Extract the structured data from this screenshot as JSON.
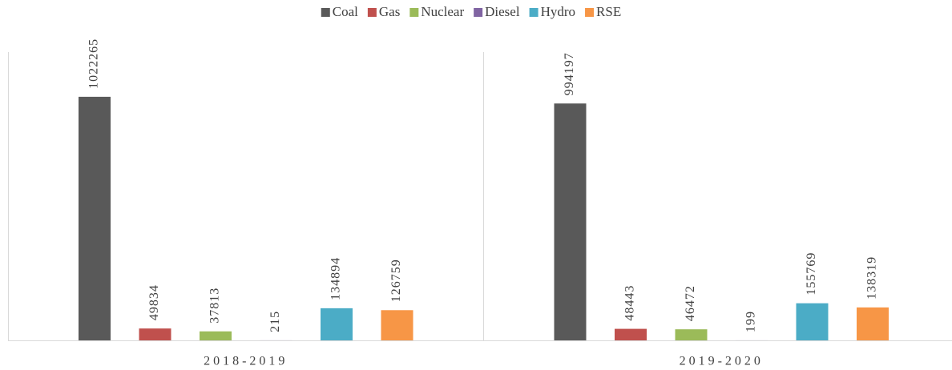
{
  "chart_data": {
    "type": "bar",
    "categories": [
      "2018-2019",
      "2019-2020"
    ],
    "series": [
      {
        "name": "Coal",
        "color": "#595959",
        "values": [
          1022265,
          994197
        ]
      },
      {
        "name": "Gas",
        "color": "#c0504d",
        "values": [
          49834,
          48443
        ]
      },
      {
        "name": "Nuclear",
        "color": "#9bbb59",
        "values": [
          37813,
          46472
        ]
      },
      {
        "name": "Diesel",
        "color": "#8064a2",
        "values": [
          215,
          199
        ]
      },
      {
        "name": "Hydro",
        "color": "#4bacc6",
        "values": [
          134894,
          155769
        ]
      },
      {
        "name": "RSE",
        "color": "#f79646",
        "values": [
          126759,
          138319
        ]
      }
    ],
    "ylim": [
      0,
      1200000
    ],
    "legend": "top"
  }
}
